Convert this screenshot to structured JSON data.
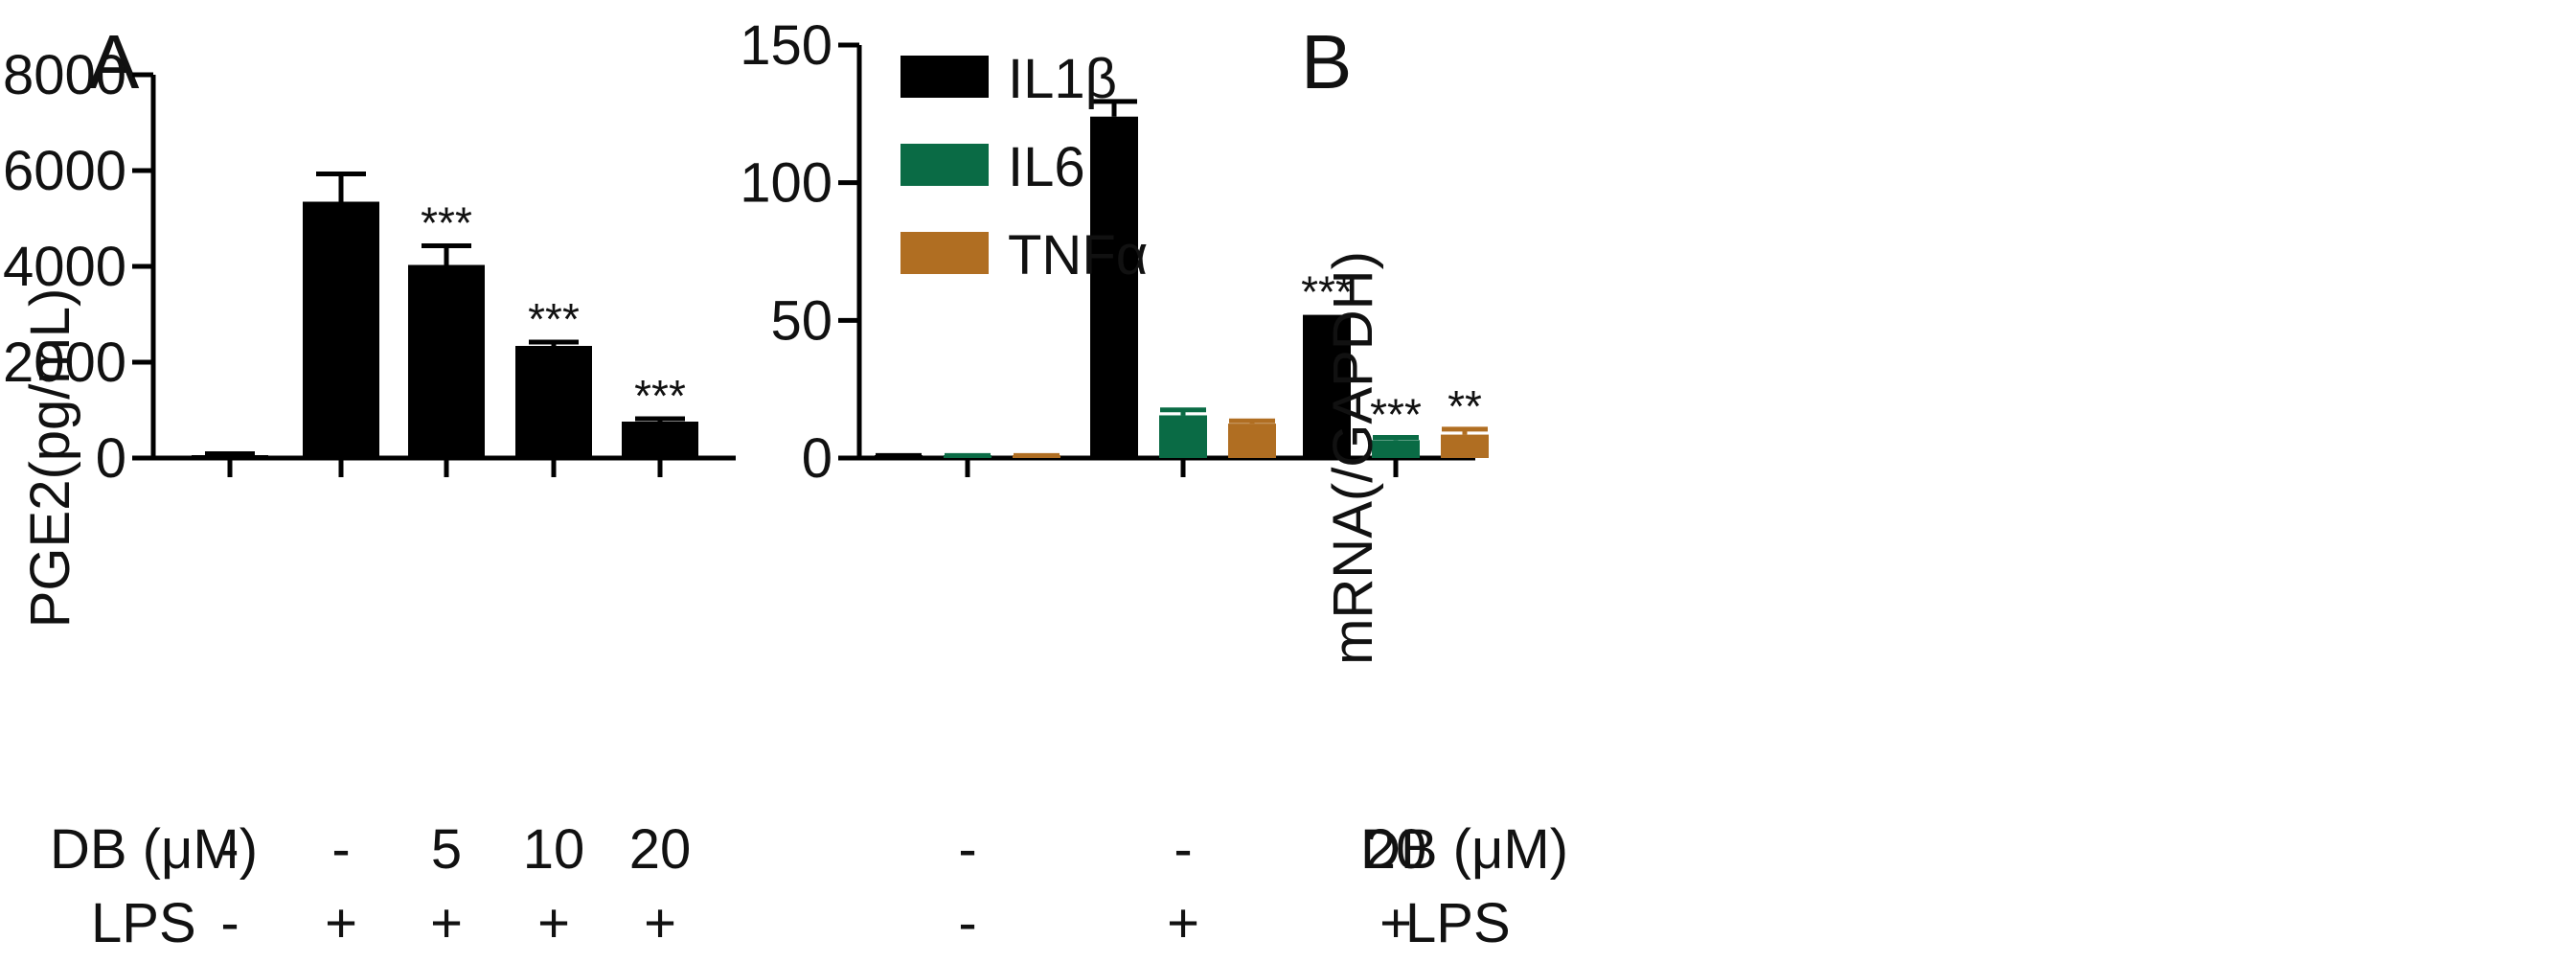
{
  "chart_data": [
    {
      "panel_label": "A",
      "type": "bar",
      "ylabel": "PGE2(pg/mL)",
      "ylim": [
        0,
        8000
      ],
      "yticks": [
        0,
        2000,
        4000,
        6000,
        8000
      ],
      "row_labels": [
        "DB (μM)",
        "LPS"
      ],
      "groups": [
        {
          "db": "-",
          "lps": "-"
        },
        {
          "db": "-",
          "lps": "+"
        },
        {
          "db": "5",
          "lps": "+"
        },
        {
          "db": "10",
          "lps": "+"
        },
        {
          "db": "20",
          "lps": "+"
        }
      ],
      "series": [
        {
          "values": [
            50,
            5350,
            4030,
            2340,
            760
          ],
          "errors": [
            40,
            580,
            400,
            80,
            60
          ],
          "significance": [
            "",
            "",
            "***",
            "***",
            "***"
          ],
          "color": "#000000"
        }
      ]
    },
    {
      "panel_label": "B",
      "type": "bar",
      "ylabel": "mRNA(/GAPDH)",
      "ylim": [
        0,
        150
      ],
      "yticks": [
        0,
        50,
        100,
        150
      ],
      "row_labels": [
        "DB (μM)",
        "LPS"
      ],
      "legend": "top-left",
      "groups": [
        {
          "db": "-",
          "lps": "-"
        },
        {
          "db": "-",
          "lps": "+"
        },
        {
          "db": "20",
          "lps": "+"
        }
      ],
      "series": [
        {
          "name": "IL1β",
          "color": "#000000",
          "values": [
            0.5,
            124,
            52
          ],
          "errors": [
            0.4,
            5.5,
            0
          ],
          "significance": [
            "",
            "",
            "***"
          ]
        },
        {
          "name": "IL6",
          "color": "#0a6b45",
          "values": [
            0.5,
            15.5,
            6.5
          ],
          "errors": [
            0.4,
            2,
            1
          ],
          "significance": [
            "",
            "",
            "***"
          ]
        },
        {
          "name": "TNFα",
          "color": "#b06e22",
          "values": [
            0.5,
            12.5,
            8.5
          ],
          "errors": [
            0.4,
            1,
            2
          ],
          "significance": [
            "",
            "",
            "**"
          ]
        }
      ]
    }
  ]
}
